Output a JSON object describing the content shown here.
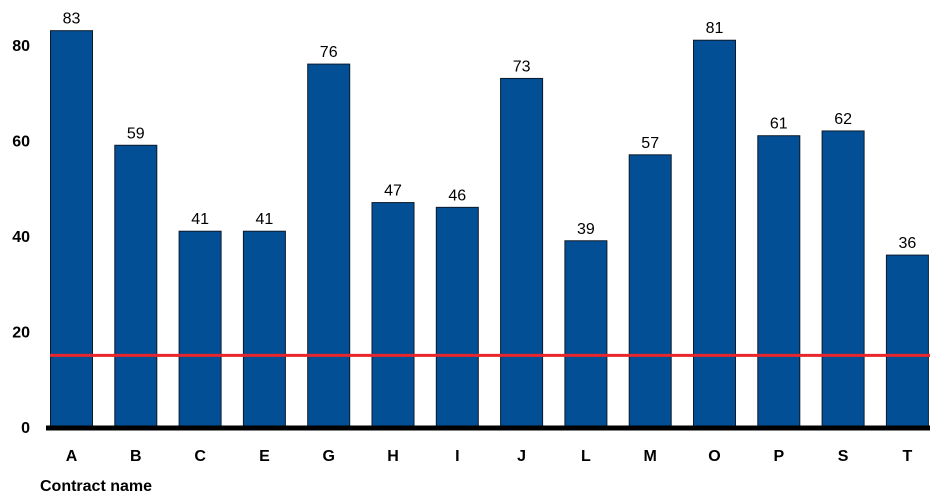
{
  "chart_data": {
    "type": "bar",
    "xlabel": "Contract name",
    "ylabel": "",
    "title": "",
    "categories": [
      "A",
      "B",
      "C",
      "E",
      "G",
      "H",
      "I",
      "J",
      "L",
      "M",
      "O",
      "P",
      "S",
      "T"
    ],
    "values": [
      83,
      59,
      41,
      41,
      76,
      47,
      46,
      73,
      39,
      57,
      81,
      61,
      62,
      36
    ],
    "ylim": [
      0,
      85
    ],
    "yticks": [
      0,
      20,
      40,
      60,
      80
    ],
    "reference_line": {
      "value": 15,
      "color": "#e8262b"
    },
    "bar_color": "#034f95",
    "grid": false,
    "legend": "none",
    "data_labels": true
  }
}
